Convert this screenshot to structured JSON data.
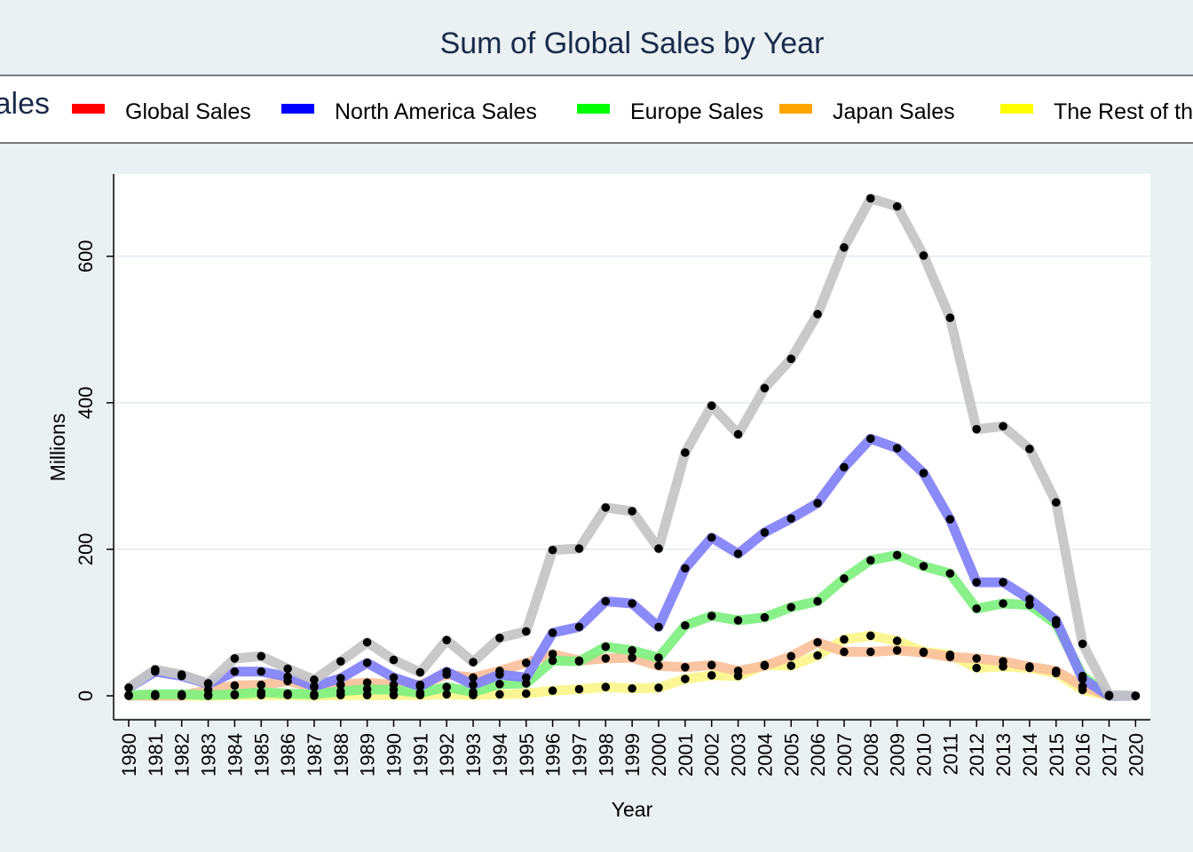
{
  "chart_data": {
    "type": "line",
    "title": "Sum of Global Sales by Year",
    "legend_title": "Sales",
    "legend_position": "top",
    "xlabel": "Year",
    "ylabel": "Millions",
    "ylim": [
      -40,
      710
    ],
    "yticks": [
      0,
      200,
      400,
      600
    ],
    "grid": true,
    "categories": [
      "1980",
      "1981",
      "1982",
      "1983",
      "1984",
      "1985",
      "1986",
      "1987",
      "1988",
      "1989",
      "1990",
      "1991",
      "1992",
      "1993",
      "1994",
      "1995",
      "1996",
      "1997",
      "1998",
      "1999",
      "2000",
      "2001",
      "2002",
      "2003",
      "2004",
      "2005",
      "2006",
      "2007",
      "2008",
      "2009",
      "2010",
      "2011",
      "2012",
      "2013",
      "2014",
      "2015",
      "2016",
      "2017",
      "2020"
    ],
    "series": [
      {
        "name": "Global Sales",
        "legend_color": "#ff0000",
        "line_color": "#c4c4c4",
        "values": [
          11,
          36,
          29,
          17,
          51,
          54,
          37,
          22,
          47,
          73,
          49,
          32,
          76,
          46,
          79,
          88,
          199,
          201,
          257,
          252,
          201,
          332,
          396,
          357,
          420,
          460,
          521,
          612,
          679,
          668,
          601,
          516,
          364,
          368,
          337,
          264,
          71,
          1,
          0
        ]
      },
      {
        "name": "North America Sales",
        "legend_color": "#0000ff",
        "line_color": "#8080f8",
        "values": [
          11,
          33,
          27,
          16,
          33,
          33,
          26,
          13,
          24,
          45,
          25,
          13,
          33,
          15,
          29,
          25,
          86,
          94,
          129,
          126,
          94,
          174,
          216,
          194,
          223,
          242,
          263,
          312,
          351,
          338,
          304,
          241,
          155,
          155,
          132,
          103,
          23,
          0,
          0
        ]
      },
      {
        "name": "Europe Sales",
        "legend_color": "#00ff00",
        "line_color": "#7ff07f",
        "values": [
          1,
          2,
          2,
          1,
          2,
          5,
          3,
          2,
          6,
          9,
          8,
          4,
          12,
          5,
          16,
          17,
          48,
          47,
          67,
          62,
          52,
          96,
          109,
          103,
          107,
          121,
          129,
          160,
          185,
          192,
          177,
          167,
          119,
          126,
          124,
          98,
          27,
          0,
          0
        ]
      },
      {
        "name": "Japan Sales",
        "legend_color": "#ffa500",
        "line_color": "#fac09a",
        "values": [
          0,
          0,
          0,
          8,
          14,
          15,
          20,
          12,
          15,
          18,
          15,
          15,
          29,
          25,
          34,
          45,
          57,
          48,
          51,
          52,
          41,
          39,
          42,
          34,
          41,
          54,
          73,
          60,
          60,
          62,
          59,
          53,
          51,
          47,
          40,
          34,
          13,
          0,
          0
        ]
      },
      {
        "name": "The Rest of the World",
        "legend_color": "#ffff00",
        "line_color": "#fbf58a",
        "values": [
          0,
          0,
          0,
          0,
          1,
          1,
          1,
          0,
          1,
          1,
          1,
          1,
          2,
          1,
          2,
          3,
          7,
          9,
          12,
          10,
          11,
          23,
          28,
          27,
          42,
          41,
          55,
          77,
          82,
          75,
          60,
          56,
          38,
          40,
          38,
          31,
          8,
          0,
          0
        ]
      }
    ],
    "draw_order": [
      4,
      3,
      2,
      1,
      0
    ],
    "plot_background": "#ffffff",
    "page_background": "#eaf1f3"
  }
}
